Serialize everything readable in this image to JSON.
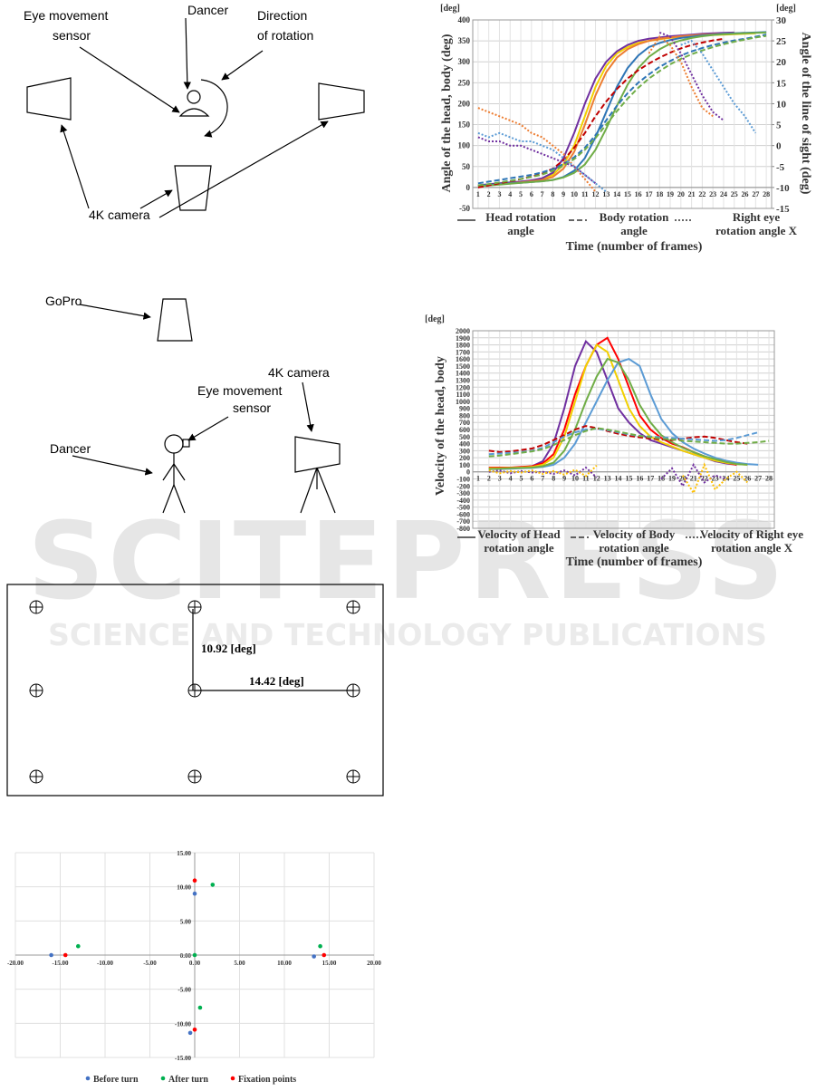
{
  "figures": {
    "setup_top": {
      "eye_sensor": [
        "Eye movement",
        "sensor"
      ],
      "dancer": "Dancer",
      "direction": [
        "Direction",
        "of rotation"
      ],
      "camera": "4K camera"
    },
    "setup_side": {
      "gopro": "GoPro",
      "camera": "4K camera",
      "eye_sensor": [
        "Eye movement",
        "sensor"
      ],
      "dancer": "Dancer"
    },
    "fixation_grid": {
      "vertical": "10.92 [deg]",
      "horizontal": "14.42 [deg]"
    }
  },
  "watermark": {
    "title": "SCITEPRESS",
    "subtitle": "SCIENCE AND TECHNOLOGY PUBLICATIONS"
  },
  "chart_data": [
    {
      "type": "line",
      "y_unit": "[deg]",
      "y2_unit": "[deg]",
      "ylabel": "Angle of the head, body (deg)",
      "y2label": "Angle of the line of sight (deg)",
      "xlabel": "Time (number of frames)",
      "categories": [
        1,
        2,
        3,
        4,
        5,
        6,
        7,
        8,
        9,
        10,
        11,
        12,
        13,
        14,
        15,
        16,
        17,
        18,
        19,
        20,
        21,
        22,
        23,
        24,
        25,
        26,
        27,
        28
      ],
      "ylim": [
        -50,
        400
      ],
      "yticks": [
        -50,
        0,
        50,
        100,
        150,
        200,
        250,
        300,
        350,
        400
      ],
      "y2lim": [
        -15,
        30
      ],
      "y2ticks": [
        -15,
        -10,
        -5,
        0,
        5,
        10,
        15,
        20,
        25,
        30
      ],
      "grid": true,
      "legend": [
        {
          "label": [
            "Head rotation",
            "angle"
          ],
          "style": "solid"
        },
        {
          "label": [
            "Body rotation",
            "angle"
          ],
          "style": "dashed"
        },
        {
          "label": [
            "Right eye",
            "rotation angle X"
          ],
          "style": "dotted"
        }
      ],
      "series": [
        {
          "color": "#f2d000",
          "style": "solid",
          "values": [
            5,
            7,
            9,
            11,
            13,
            16,
            20,
            30,
            55,
            100,
            170,
            240,
            290,
            320,
            335,
            345,
            350,
            354,
            357,
            360,
            362,
            363,
            364,
            365,
            366,
            367,
            368,
            null
          ]
        },
        {
          "color": "#7030a0",
          "style": "solid",
          "values": [
            5,
            8,
            10,
            12,
            14,
            17,
            22,
            35,
            70,
            130,
            200,
            260,
            300,
            325,
            340,
            350,
            355,
            358,
            361,
            363,
            365,
            367,
            368,
            369,
            370,
            null,
            null,
            null
          ]
        },
        {
          "color": "#ed7d31",
          "style": "solid",
          "values": [
            3,
            5,
            8,
            10,
            12,
            15,
            18,
            25,
            45,
            85,
            150,
            220,
            275,
            310,
            330,
            342,
            350,
            355,
            358,
            361,
            363,
            365,
            366,
            367,
            368,
            369,
            null,
            null
          ]
        },
        {
          "color": "#2e75b6",
          "style": "solid",
          "values": [
            5,
            6,
            8,
            10,
            11,
            13,
            15,
            18,
            25,
            40,
            70,
            120,
            180,
            240,
            285,
            315,
            335,
            345,
            352,
            357,
            360,
            363,
            365,
            367,
            368,
            369,
            370,
            371
          ]
        },
        {
          "color": "#70ad47",
          "style": "solid",
          "values": [
            3,
            5,
            7,
            9,
            11,
            13,
            15,
            18,
            24,
            35,
            55,
            90,
            140,
            195,
            245,
            285,
            312,
            330,
            343,
            351,
            357,
            361,
            364,
            366,
            367,
            368,
            369,
            370
          ]
        },
        {
          "color": "#c00000",
          "style": "dashed",
          "values": [
            0,
            5,
            10,
            15,
            20,
            26,
            33,
            45,
            65,
            95,
            130,
            170,
            205,
            235,
            260,
            280,
            296,
            310,
            322,
            332,
            340,
            346,
            351,
            355,
            null,
            null,
            null,
            null
          ]
        },
        {
          "color": "#2e75b6",
          "style": "dashed",
          "values": [
            10,
            14,
            18,
            22,
            26,
            30,
            36,
            44,
            56,
            72,
            95,
            125,
            160,
            195,
            225,
            250,
            270,
            288,
            302,
            315,
            325,
            333,
            340,
            346,
            351,
            355,
            360,
            365
          ]
        },
        {
          "color": "#70ad47",
          "style": "dashed",
          "values": [
            5,
            8,
            12,
            16,
            20,
            25,
            31,
            40,
            52,
            68,
            90,
            118,
            150,
            182,
            212,
            238,
            260,
            278,
            294,
            307,
            318,
            327,
            335,
            342,
            348,
            353,
            358,
            362
          ]
        },
        {
          "color": "#ed7d31",
          "style": "dotted",
          "axis": "y2",
          "values": [
            9,
            8,
            7,
            6,
            5,
            3,
            2,
            0,
            -2,
            -5,
            -8,
            -11,
            null,
            null,
            null,
            null,
            22,
            26,
            24,
            20,
            14,
            9,
            7,
            null,
            null,
            null,
            null,
            null
          ]
        },
        {
          "color": "#7030a0",
          "style": "dotted",
          "axis": "y2",
          "values": [
            2,
            1,
            1,
            0,
            0,
            -1,
            -2,
            -3,
            -4,
            -5,
            -7,
            -9,
            null,
            null,
            null,
            null,
            null,
            27,
            26,
            22,
            17,
            12,
            8,
            6,
            null,
            null,
            null,
            null
          ]
        },
        {
          "color": "#5b9bd5",
          "style": "dotted",
          "axis": "y2",
          "values": [
            3,
            2,
            3,
            2,
            1,
            1,
            0,
            -1,
            -3,
            -5,
            -7,
            -9,
            -11,
            null,
            null,
            null,
            null,
            null,
            null,
            24,
            25,
            22,
            18,
            14,
            10,
            7,
            3,
            null
          ]
        }
      ]
    },
    {
      "type": "line",
      "y_unit": "[deg]",
      "ylabel": "Velocity of the head, body",
      "xlabel": "Time (number of frames)",
      "categories": [
        1,
        2,
        3,
        4,
        5,
        6,
        7,
        8,
        9,
        10,
        11,
        12,
        13,
        14,
        15,
        16,
        17,
        18,
        19,
        20,
        21,
        22,
        23,
        24,
        25,
        26,
        27,
        28
      ],
      "ylim": [
        -800,
        2000
      ],
      "yticks": [
        -800,
        -700,
        -600,
        -500,
        -400,
        -300,
        -200,
        -100,
        0,
        100,
        200,
        300,
        400,
        500,
        600,
        700,
        800,
        900,
        1000,
        1100,
        1200,
        1300,
        1400,
        1500,
        1600,
        1700,
        1800,
        1900,
        2000
      ],
      "grid": true,
      "legend": [
        {
          "label": [
            "Velocity of Head",
            "rotation angle"
          ],
          "style": "solid"
        },
        {
          "label": [
            "Velocity of Body",
            "rotation angle"
          ],
          "style": "dashed"
        },
        {
          "label": [
            "Velocity of Right eye",
            "rotation angle X"
          ],
          "style": "dotted"
        }
      ],
      "series": [
        {
          "color": "#7030a0",
          "style": "solid",
          "values": [
            null,
            50,
            50,
            60,
            60,
            80,
            150,
            400,
            900,
            1500,
            1850,
            1700,
            1300,
            900,
            700,
            550,
            450,
            400,
            350,
            300,
            250,
            200,
            150,
            120,
            100,
            null,
            null,
            null
          ]
        },
        {
          "color": "#ff0000",
          "style": "solid",
          "values": [
            null,
            60,
            60,
            60,
            70,
            80,
            120,
            250,
            600,
            1100,
            1500,
            1800,
            1900,
            1600,
            1200,
            800,
            600,
            480,
            400,
            350,
            280,
            220,
            170,
            130,
            100,
            null,
            null,
            null
          ]
        },
        {
          "color": "#f2d000",
          "style": "solid",
          "values": [
            null,
            50,
            50,
            55,
            60,
            70,
            100,
            200,
            500,
            1000,
            1500,
            1800,
            1700,
            1300,
            900,
            650,
            500,
            420,
            360,
            300,
            250,
            200,
            160,
            130,
            110,
            100,
            null,
            null
          ]
        },
        {
          "color": "#5b9bd5",
          "style": "solid",
          "values": [
            null,
            40,
            40,
            45,
            50,
            55,
            70,
            100,
            200,
            400,
            700,
            1000,
            1300,
            1550,
            1600,
            1500,
            1100,
            750,
            550,
            420,
            330,
            260,
            200,
            160,
            130,
            110,
            100,
            null
          ]
        },
        {
          "color": "#70ad47",
          "style": "solid",
          "values": [
            null,
            40,
            45,
            50,
            55,
            60,
            80,
            130,
            300,
            600,
            1000,
            1350,
            1600,
            1550,
            1300,
            950,
            700,
            520,
            420,
            340,
            280,
            220,
            180,
            140,
            110,
            100,
            null,
            null
          ]
        },
        {
          "color": "#c00000",
          "style": "dashed",
          "values": [
            null,
            300,
            280,
            290,
            310,
            330,
            380,
            450,
            520,
            600,
            650,
            620,
            580,
            540,
            510,
            490,
            470,
            460,
            450,
            470,
            490,
            500,
            480,
            450,
            420,
            400,
            null,
            null
          ]
        },
        {
          "color": "#5b9bd5",
          "style": "dashed",
          "values": [
            null,
            250,
            260,
            270,
            280,
            300,
            340,
            420,
            500,
            560,
            600,
            610,
            590,
            560,
            530,
            510,
            500,
            490,
            480,
            470,
            460,
            450,
            440,
            450,
            480,
            520,
            560,
            null
          ]
        },
        {
          "color": "#70ad47",
          "style": "dashed",
          "values": [
            null,
            220,
            230,
            250,
            270,
            290,
            320,
            380,
            450,
            520,
            580,
            620,
            600,
            570,
            540,
            510,
            490,
            470,
            460,
            440,
            430,
            420,
            410,
            400,
            400,
            410,
            420,
            440
          ]
        },
        {
          "color": "#7030a0",
          "style": "dotted",
          "values": [
            null,
            0,
            20,
            -20,
            10,
            -10,
            0,
            -30,
            20,
            -50,
            60,
            -80,
            null,
            null,
            null,
            null,
            null,
            -100,
            50,
            -200,
            100,
            -150,
            -50,
            -100,
            null,
            null,
            null,
            null
          ]
        },
        {
          "color": "#ffc000",
          "style": "dotted",
          "values": [
            null,
            20,
            -20,
            10,
            -10,
            20,
            -30,
            10,
            -40,
            30,
            -60,
            90,
            null,
            null,
            null,
            null,
            null,
            null,
            null,
            -50,
            -300,
            100,
            -250,
            -100,
            0,
            -150,
            null,
            null
          ]
        }
      ]
    },
    {
      "type": "scatter",
      "xlim": [
        -20,
        20
      ],
      "ylim": [
        -15,
        15
      ],
      "grid": true,
      "xticks": [
        {
          "value": -20,
          "label": "-20.00"
        },
        {
          "value": -15,
          "label": "-15.00"
        },
        {
          "value": -10,
          "label": "-10.00"
        },
        {
          "value": -5,
          "label": "-5.00"
        },
        {
          "value": 0,
          "label": "0.00"
        },
        {
          "value": 5,
          "label": "5.00"
        },
        {
          "value": 10,
          "label": "10.00"
        },
        {
          "value": 15,
          "label": "15.00"
        },
        {
          "value": 20,
          "label": "20.00"
        }
      ],
      "yticks": [
        {
          "value": -15,
          "label": "-15.00"
        },
        {
          "value": -10,
          "label": "-10.00"
        },
        {
          "value": -5,
          "label": "-5.00"
        },
        {
          "value": 0,
          "label": "0.00"
        },
        {
          "value": 5,
          "label": "5.00"
        },
        {
          "value": 10,
          "label": "10.00"
        },
        {
          "value": 15,
          "label": "15.00"
        }
      ],
      "series": [
        {
          "name": "Before turn",
          "color": "#4472c4",
          "x": [
            -16,
            0,
            13.3,
            -0.5
          ],
          "values": [
            0,
            9,
            -0.2,
            -11.4
          ]
        },
        {
          "name": "After turn",
          "color": "#00b050",
          "x": [
            -13,
            2,
            0,
            14,
            0.6
          ],
          "values": [
            1.3,
            10.3,
            0,
            1.3,
            -7.7
          ]
        },
        {
          "name": "Fixation points",
          "color": "#ff0000",
          "x": [
            -14.42,
            0,
            14.42,
            0
          ],
          "values": [
            0,
            10.92,
            0,
            -10.92
          ]
        }
      ]
    }
  ]
}
